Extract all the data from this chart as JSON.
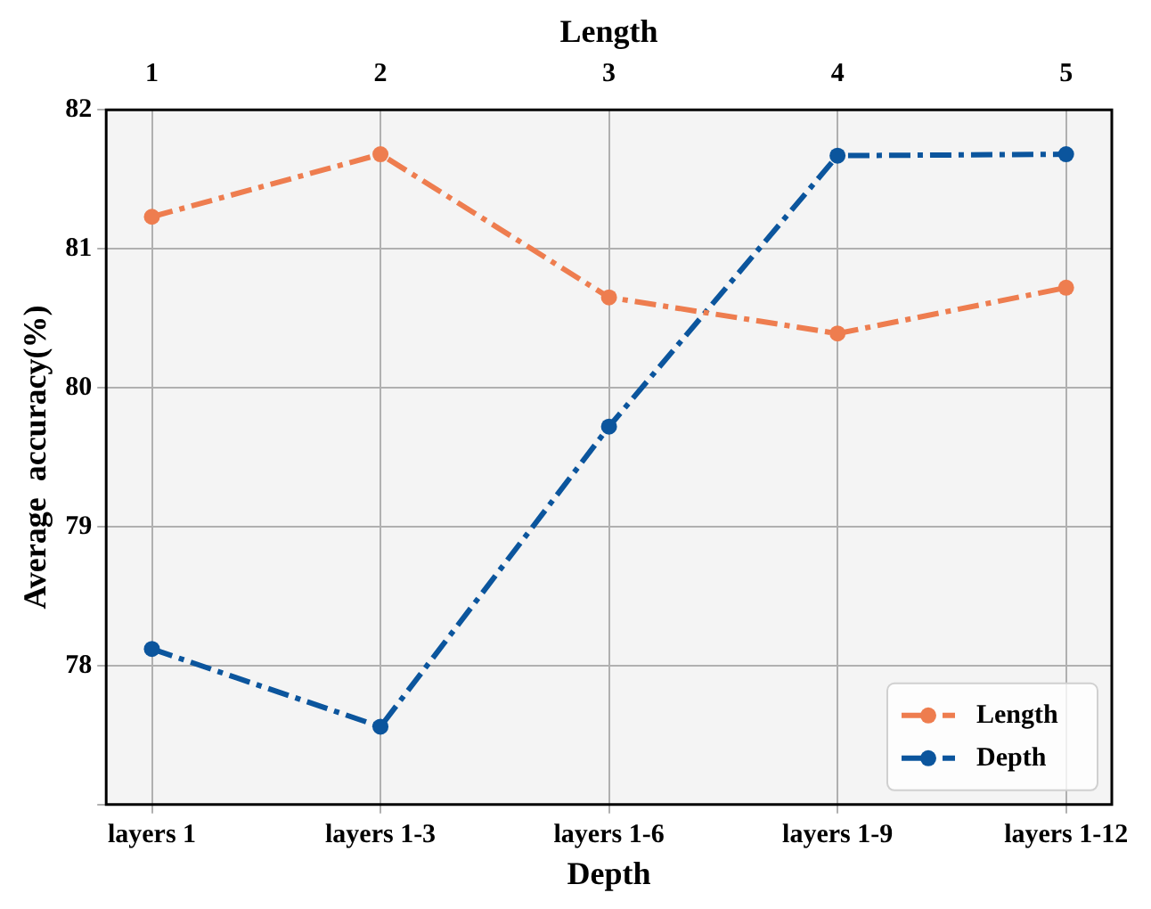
{
  "chart_data": {
    "type": "line",
    "xlabel": "Depth",
    "ylabel": "Average  accuracy(%)",
    "x2label": "Length",
    "categories": [
      "layers 1",
      "layers 1-3",
      "layers 1-6",
      "layers 1-9",
      "layers 1-12"
    ],
    "series": [
      {
        "name": "Length",
        "color": "#ee7d4f",
        "axis": "x2",
        "x": [
          1,
          2,
          3,
          4,
          5
        ],
        "values": [
          81.23,
          81.68,
          80.65,
          80.39,
          80.72
        ]
      },
      {
        "name": "Depth",
        "color": "#0b559d",
        "values": [
          78.12,
          77.56,
          79.72,
          81.67,
          81.68
        ]
      }
    ],
    "ylim": [
      77,
      82
    ],
    "yticks": [
      {
        "value": 77,
        "label": null
      },
      78,
      79,
      80,
      81,
      82
    ],
    "x2lim": [
      0.8,
      5.2
    ],
    "x2ticks": [
      1,
      2,
      3,
      4,
      5
    ],
    "grid": true,
    "legend": "bottom right",
    "marker": "circle",
    "line_style": "dashed"
  }
}
